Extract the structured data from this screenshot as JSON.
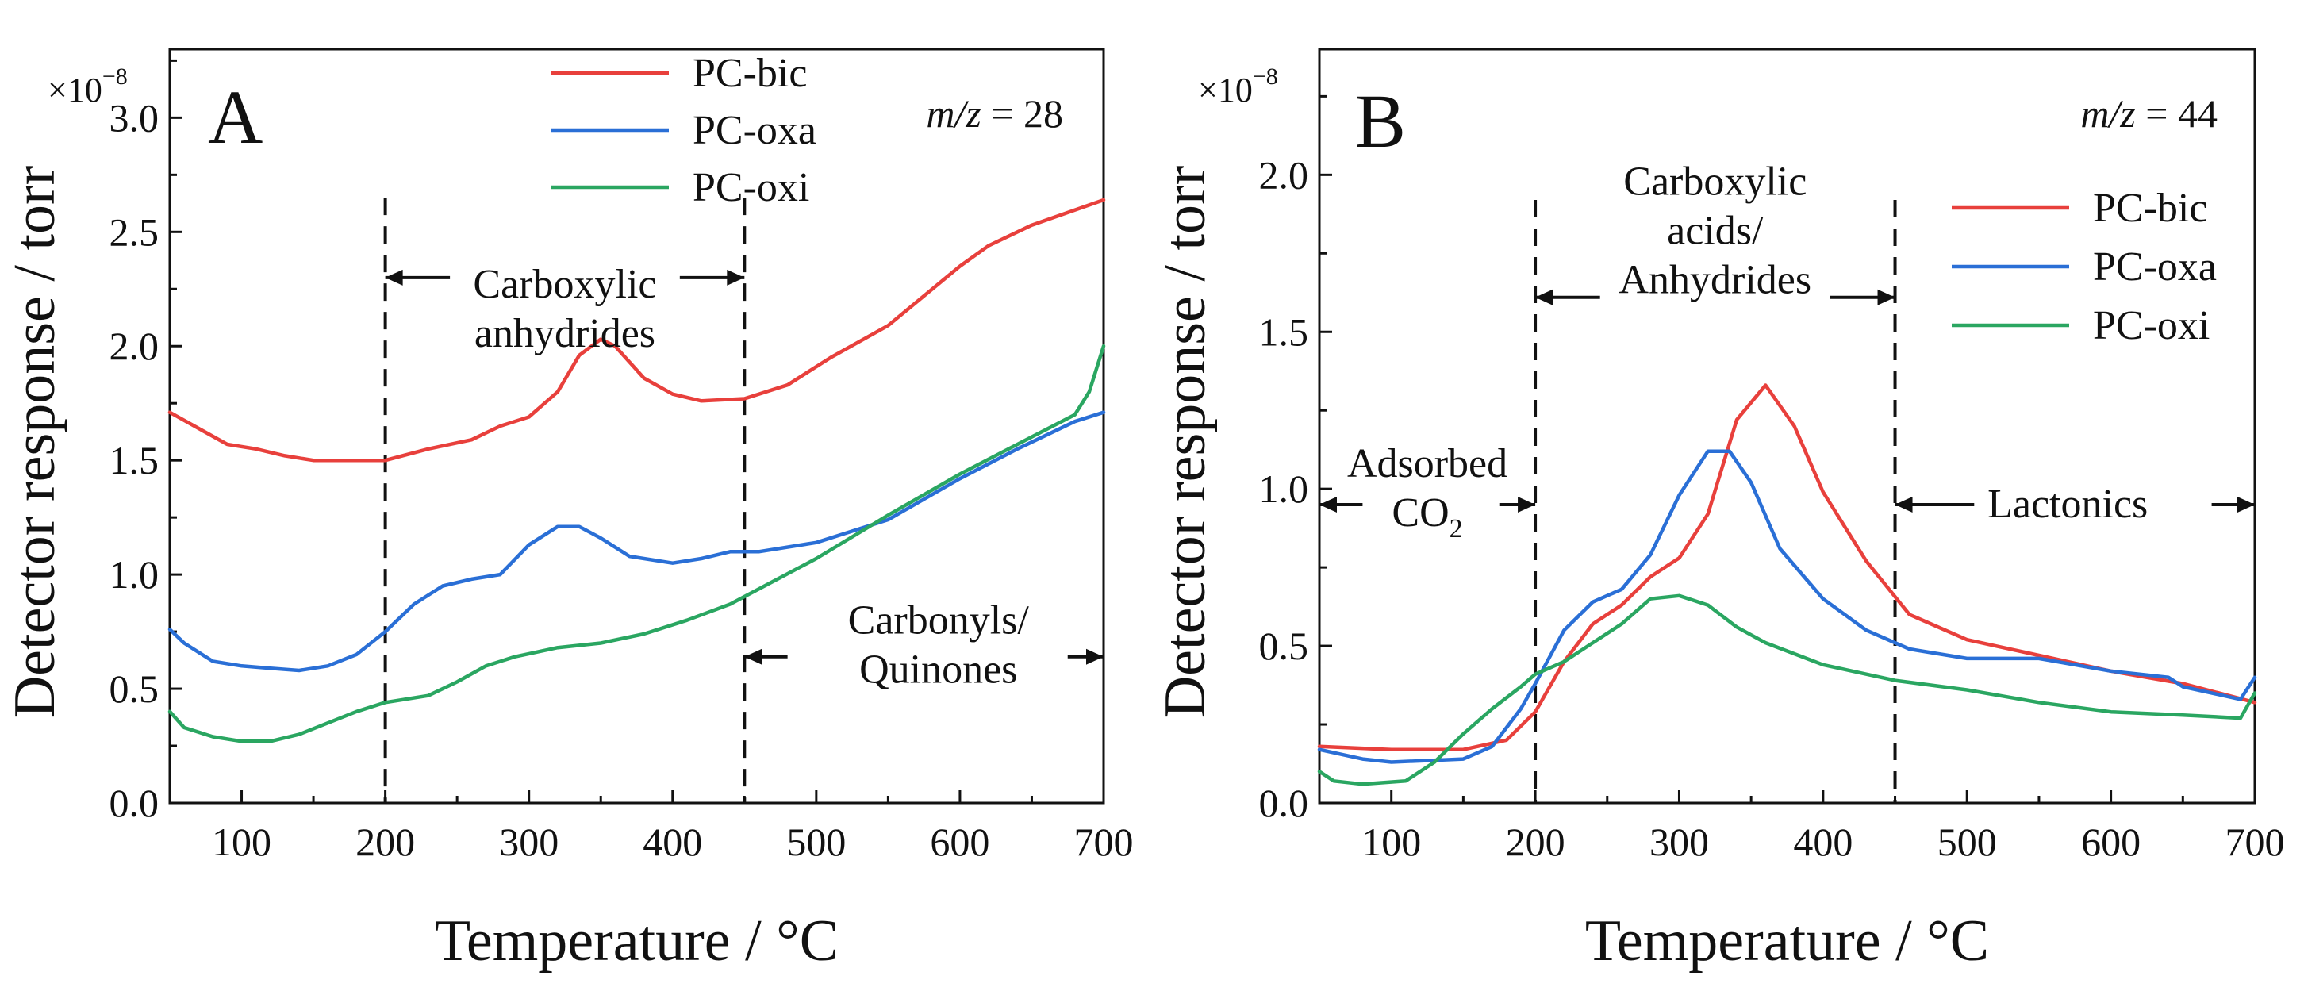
{
  "xlabel": "Temperature / °C",
  "ylabel": "Detector response / torr",
  "colors": {
    "bic": "#e8403c",
    "oxa": "#2a6fd6",
    "oxi": "#2aa661",
    "axis": "#111111"
  },
  "chart_data": [
    {
      "type": "line",
      "panel_label": "A",
      "mz_prefix": "m/z",
      "mz_value": "= 28",
      "scale_prefix": "×10",
      "scale_exponent": "−8",
      "xlabel": "Temperature / °C",
      "ylabel": "Detector response / torr",
      "xlim": [
        50,
        700
      ],
      "ylim": [
        0,
        3.3
      ],
      "xticks": [
        100,
        200,
        300,
        400,
        500,
        600,
        700
      ],
      "yticks": [
        0.0,
        0.5,
        1.0,
        1.5,
        2.0,
        2.5,
        3.0
      ],
      "xtick_labels": [
        "100",
        "200",
        "300",
        "400",
        "500",
        "600",
        "700"
      ],
      "ytick_labels": [
        "0.0",
        "0.5",
        "1.0",
        "1.5",
        "2.0",
        "2.5",
        "3.0"
      ],
      "legend": [
        "PC-bic",
        "PC-oxa",
        "PC-oxi"
      ],
      "series": [
        {
          "name": "PC-bic",
          "key": "bic",
          "x": [
            50,
            70,
            90,
            110,
            130,
            150,
            170,
            200,
            230,
            260,
            280,
            300,
            320,
            335,
            350,
            360,
            380,
            400,
            420,
            450,
            480,
            510,
            550,
            600,
            620,
            650,
            700
          ],
          "values": [
            1.71,
            1.64,
            1.57,
            1.55,
            1.52,
            1.5,
            1.5,
            1.5,
            1.55,
            1.59,
            1.65,
            1.69,
            1.8,
            1.96,
            2.03,
            2.0,
            1.86,
            1.79,
            1.76,
            1.77,
            1.83,
            1.95,
            2.09,
            2.35,
            2.44,
            2.53,
            2.64
          ]
        },
        {
          "name": "PC-oxa",
          "key": "oxa",
          "x": [
            50,
            60,
            80,
            100,
            120,
            140,
            160,
            180,
            200,
            220,
            240,
            260,
            280,
            300,
            320,
            335,
            350,
            370,
            400,
            420,
            440,
            460,
            500,
            550,
            600,
            640,
            680,
            700
          ],
          "values": [
            0.76,
            0.7,
            0.62,
            0.6,
            0.59,
            0.58,
            0.6,
            0.65,
            0.75,
            0.87,
            0.95,
            0.98,
            1.0,
            1.13,
            1.21,
            1.21,
            1.16,
            1.08,
            1.05,
            1.07,
            1.1,
            1.1,
            1.14,
            1.24,
            1.42,
            1.55,
            1.67,
            1.71
          ]
        },
        {
          "name": "PC-oxi",
          "key": "oxi",
          "x": [
            50,
            60,
            80,
            100,
            120,
            140,
            160,
            180,
            200,
            230,
            250,
            270,
            290,
            320,
            350,
            380,
            410,
            440,
            470,
            500,
            550,
            600,
            640,
            680,
            690,
            700
          ],
          "values": [
            0.4,
            0.33,
            0.29,
            0.27,
            0.27,
            0.3,
            0.35,
            0.4,
            0.44,
            0.47,
            0.53,
            0.6,
            0.64,
            0.68,
            0.7,
            0.74,
            0.8,
            0.87,
            0.97,
            1.07,
            1.26,
            1.44,
            1.57,
            1.7,
            1.8,
            2.0
          ]
        }
      ],
      "vlines": [
        200,
        450
      ],
      "annotations": [
        {
          "lines": [
            "Carboxylic",
            "anhydrides"
          ],
          "x": 325,
          "y": 2.16,
          "arrows": [
            [
              245,
              200
            ],
            [
              405,
              450
            ]
          ],
          "arrow_y": 2.3
        },
        {
          "lines": [
            "Carbonyls/",
            "Quinones"
          ],
          "x": 585,
          "y": 0.69,
          "arrows": [
            [
              480,
              450
            ],
            [
              675,
              700
            ]
          ],
          "arrow_y": 0.64
        }
      ]
    },
    {
      "type": "line",
      "panel_label": "B",
      "mz_prefix": "m/z",
      "mz_value": "= 44",
      "scale_prefix": "×10",
      "scale_exponent": "−8",
      "xlabel": "Temperature / °C",
      "ylabel": "Detector response / torr",
      "xlim": [
        50,
        700
      ],
      "ylim": [
        0,
        2.4
      ],
      "xticks": [
        100,
        200,
        300,
        400,
        500,
        600,
        700
      ],
      "yticks": [
        0.0,
        0.5,
        1.0,
        1.5,
        2.0
      ],
      "xtick_labels": [
        "100",
        "200",
        "300",
        "400",
        "500",
        "600",
        "700"
      ],
      "ytick_labels": [
        "0.0",
        "0.5",
        "1.0",
        "1.5",
        "2.0"
      ],
      "legend": [
        "PC-bic",
        "PC-oxa",
        "PC-oxi"
      ],
      "series": [
        {
          "name": "PC-bic",
          "key": "bic",
          "x": [
            50,
            100,
            150,
            180,
            200,
            220,
            240,
            260,
            280,
            300,
            320,
            340,
            360,
            380,
            400,
            430,
            460,
            500,
            550,
            600,
            650,
            700
          ],
          "values": [
            0.18,
            0.17,
            0.17,
            0.2,
            0.29,
            0.45,
            0.57,
            0.63,
            0.72,
            0.78,
            0.92,
            1.22,
            1.33,
            1.2,
            0.99,
            0.77,
            0.6,
            0.52,
            0.47,
            0.42,
            0.38,
            0.32
          ]
        },
        {
          "name": "PC-oxa",
          "key": "oxa",
          "x": [
            50,
            80,
            100,
            150,
            170,
            190,
            200,
            220,
            240,
            260,
            280,
            300,
            320,
            335,
            350,
            370,
            400,
            430,
            460,
            500,
            550,
            600,
            640,
            650,
            690,
            700
          ],
          "values": [
            0.17,
            0.14,
            0.13,
            0.14,
            0.18,
            0.3,
            0.38,
            0.55,
            0.64,
            0.68,
            0.79,
            0.98,
            1.12,
            1.12,
            1.02,
            0.81,
            0.65,
            0.55,
            0.49,
            0.46,
            0.46,
            0.42,
            0.4,
            0.37,
            0.33,
            0.4
          ]
        },
        {
          "name": "PC-oxi",
          "key": "oxi",
          "x": [
            50,
            60,
            80,
            110,
            130,
            150,
            170,
            190,
            200,
            220,
            240,
            260,
            280,
            300,
            320,
            340,
            360,
            400,
            450,
            500,
            550,
            600,
            650,
            690,
            700
          ],
          "values": [
            0.1,
            0.07,
            0.06,
            0.07,
            0.13,
            0.22,
            0.3,
            0.37,
            0.41,
            0.45,
            0.51,
            0.57,
            0.65,
            0.66,
            0.63,
            0.56,
            0.51,
            0.44,
            0.39,
            0.36,
            0.32,
            0.29,
            0.28,
            0.27,
            0.35
          ]
        }
      ],
      "vlines": [
        200,
        450
      ],
      "annotations": [
        {
          "lines": [
            "Carboxylic",
            "acids/",
            "Anhydrides"
          ],
          "x": 325,
          "y": 1.82,
          "arrows": [
            [
              245,
              200
            ],
            [
              405,
              450
            ]
          ],
          "arrow_y": 1.61
        },
        {
          "lines": [
            "Adsorbed",
            "CO"
          ],
          "subscript": "2",
          "x": 125,
          "y": 1.0,
          "arrows": [
            [
              80,
              50
            ],
            [
              175,
              200
            ]
          ],
          "arrow_y": 0.95
        },
        {
          "lines": [
            "Lactonics"
          ],
          "x": 570,
          "y": 0.95,
          "arrows": [
            [
              505,
              450
            ],
            [
              670,
              700
            ]
          ],
          "arrow_y": 0.95
        }
      ]
    }
  ]
}
